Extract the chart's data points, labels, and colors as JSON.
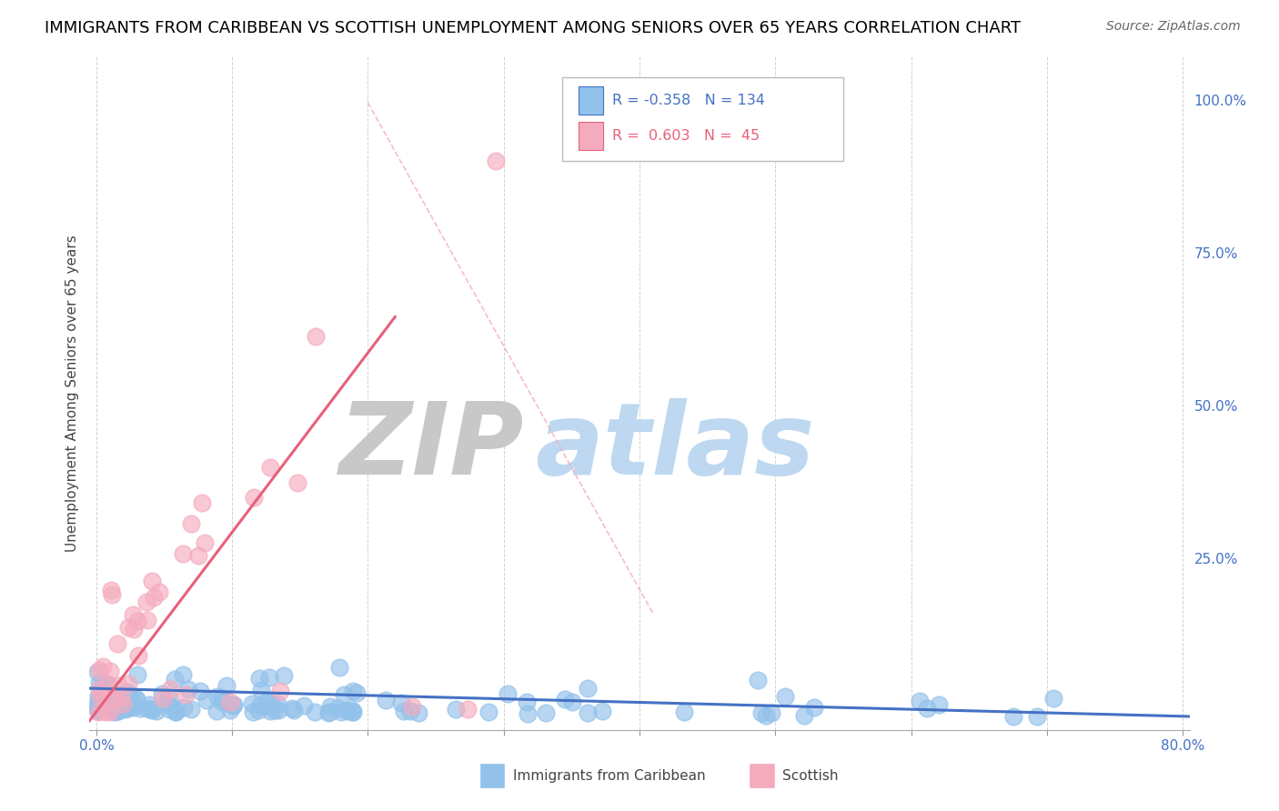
{
  "title": "IMMIGRANTS FROM CARIBBEAN VS SCOTTISH UNEMPLOYMENT AMONG SENIORS OVER 65 YEARS CORRELATION CHART",
  "source": "Source: ZipAtlas.com",
  "ylabel": "Unemployment Among Seniors over 65 years",
  "xlim": [
    -0.005,
    0.805
  ],
  "ylim": [
    -0.03,
    1.07
  ],
  "x_tick_positions": [
    0.0,
    0.1,
    0.2,
    0.3,
    0.4,
    0.5,
    0.6,
    0.7,
    0.8
  ],
  "x_tick_labels": [
    "0.0%",
    "",
    "",
    "",
    "",
    "",
    "",
    "",
    "80.0%"
  ],
  "y_ticks_right": [
    0.0,
    0.25,
    0.5,
    0.75,
    1.0
  ],
  "y_tick_labels_right": [
    "",
    "25.0%",
    "50.0%",
    "75.0%",
    "100.0%"
  ],
  "legend_R1": "-0.358",
  "legend_N1": "134",
  "legend_R2": "0.603",
  "legend_N2": "45",
  "blue_color": "#92C1EA",
  "pink_color": "#F5ABBE",
  "blue_line_color": "#4472C4",
  "pink_line_color": "#E8607A",
  "dash_line_color": "#F5ABBE",
  "watermark_zip_color": "#C8C8C8",
  "watermark_atlas_color": "#BDD8F0",
  "title_fontsize": 13,
  "axis_label_fontsize": 11,
  "tick_fontsize": 11,
  "N_blue": 134,
  "N_pink": 45,
  "figsize": [
    14.06,
    8.92
  ],
  "dpi": 100
}
